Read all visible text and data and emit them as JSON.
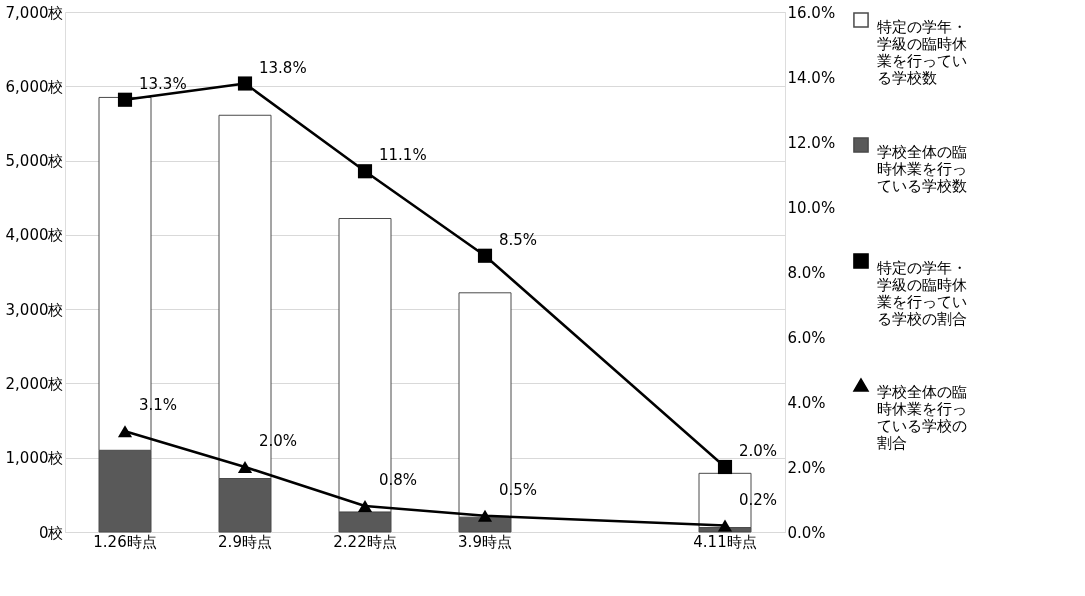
{
  "chart_data": {
    "type": "bar",
    "stacked": true,
    "categories": [
      "1.26時点",
      "2.9時点",
      "2.22時点",
      "3.9時点",
      null,
      "4.11時点"
    ],
    "series": [
      {
        "name": "学校全体の臨時休業を行っている学校数",
        "color": "#595959",
        "values": [
          1100,
          720,
          270,
          200,
          null,
          60
        ]
      },
      {
        "name": "特定の学年・学級の臨時休業を行っている学校数",
        "color": "#ffffff",
        "values": [
          4750,
          4890,
          3950,
          3020,
          null,
          730
        ]
      },
      {
        "name": "特定の学年・学級の臨時休業を行っている学校の割合",
        "type": "line",
        "axis": "y2",
        "marker": "square",
        "color": "#000000",
        "values": [
          13.3,
          13.8,
          11.1,
          8.5,
          null,
          2.0
        ],
        "value_labels": [
          "13.3%",
          "13.8%",
          "11.1%",
          "8.5%",
          null,
          "2.0%"
        ]
      },
      {
        "name": "学校全体の臨時休業を行っている学校の割合",
        "type": "line",
        "axis": "y2",
        "marker": "triangle",
        "color": "#000000",
        "values": [
          3.1,
          2.0,
          0.8,
          0.5,
          null,
          0.2
        ],
        "value_labels": [
          "3.1%",
          "2.0%",
          "0.8%",
          "0.5%",
          null,
          "0.2%"
        ]
      }
    ],
    "ylim": [
      0,
      7000
    ],
    "yticks": [
      {
        "value": 0,
        "label": "0校"
      },
      {
        "value": 1000,
        "label": "1,000校"
      },
      {
        "value": 2000,
        "label": "2,000校"
      },
      {
        "value": 3000,
        "label": "3,000校"
      },
      {
        "value": 4000,
        "label": "4,000校"
      },
      {
        "value": 5000,
        "label": "5,000校"
      },
      {
        "value": 6000,
        "label": "6,000校"
      },
      {
        "value": 7000,
        "label": "7,000校"
      }
    ],
    "y2lim": [
      0,
      16
    ],
    "y2ticks": [
      {
        "value": 0,
        "label": "0.0%"
      },
      {
        "value": 2,
        "label": "2.0%"
      },
      {
        "value": 4,
        "label": "4.0%"
      },
      {
        "value": 6,
        "label": "6.0%"
      },
      {
        "value": 8,
        "label": "8.0%"
      },
      {
        "value": 10,
        "label": "10.0%"
      },
      {
        "value": 12,
        "label": "12.0%"
      },
      {
        "value": 14,
        "label": "14.0%"
      },
      {
        "value": 16,
        "label": "16.0%"
      }
    ],
    "grid": "y",
    "legend": "right"
  }
}
